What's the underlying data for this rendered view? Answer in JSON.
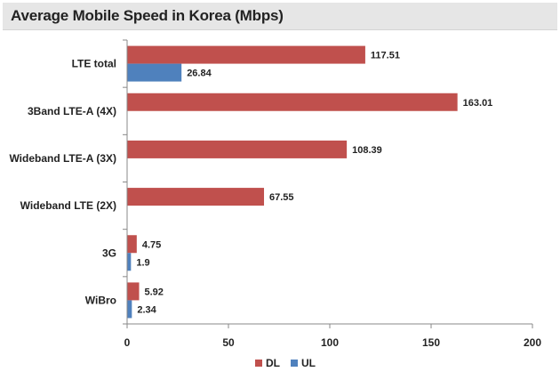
{
  "chart_data": {
    "type": "bar",
    "orientation": "horizontal",
    "title": "Average Mobile Speed in Korea (Mbps)",
    "categories": [
      "LTE total",
      "3Band LTE-A (4X)",
      "Wideband LTE-A (3X)",
      "Wideband LTE (2X)",
      "3G",
      "WiBro"
    ],
    "series": [
      {
        "name": "DL",
        "color": "#c0504d",
        "values": [
          117.51,
          163.01,
          108.39,
          67.55,
          4.75,
          5.92
        ],
        "labels": [
          "117.51",
          "163.01",
          "108.39",
          "67.55",
          "4.75",
          "5.92"
        ]
      },
      {
        "name": "UL",
        "color": "#4f81bd",
        "values": [
          26.84,
          null,
          null,
          null,
          1.9,
          2.34
        ],
        "labels": [
          "26.84",
          null,
          null,
          null,
          "1.9",
          "2.34"
        ]
      }
    ],
    "xlim": [
      0,
      200
    ],
    "xticks": [
      "0",
      "50",
      "100",
      "150",
      "200"
    ],
    "grid": false,
    "legend": "bottom"
  }
}
